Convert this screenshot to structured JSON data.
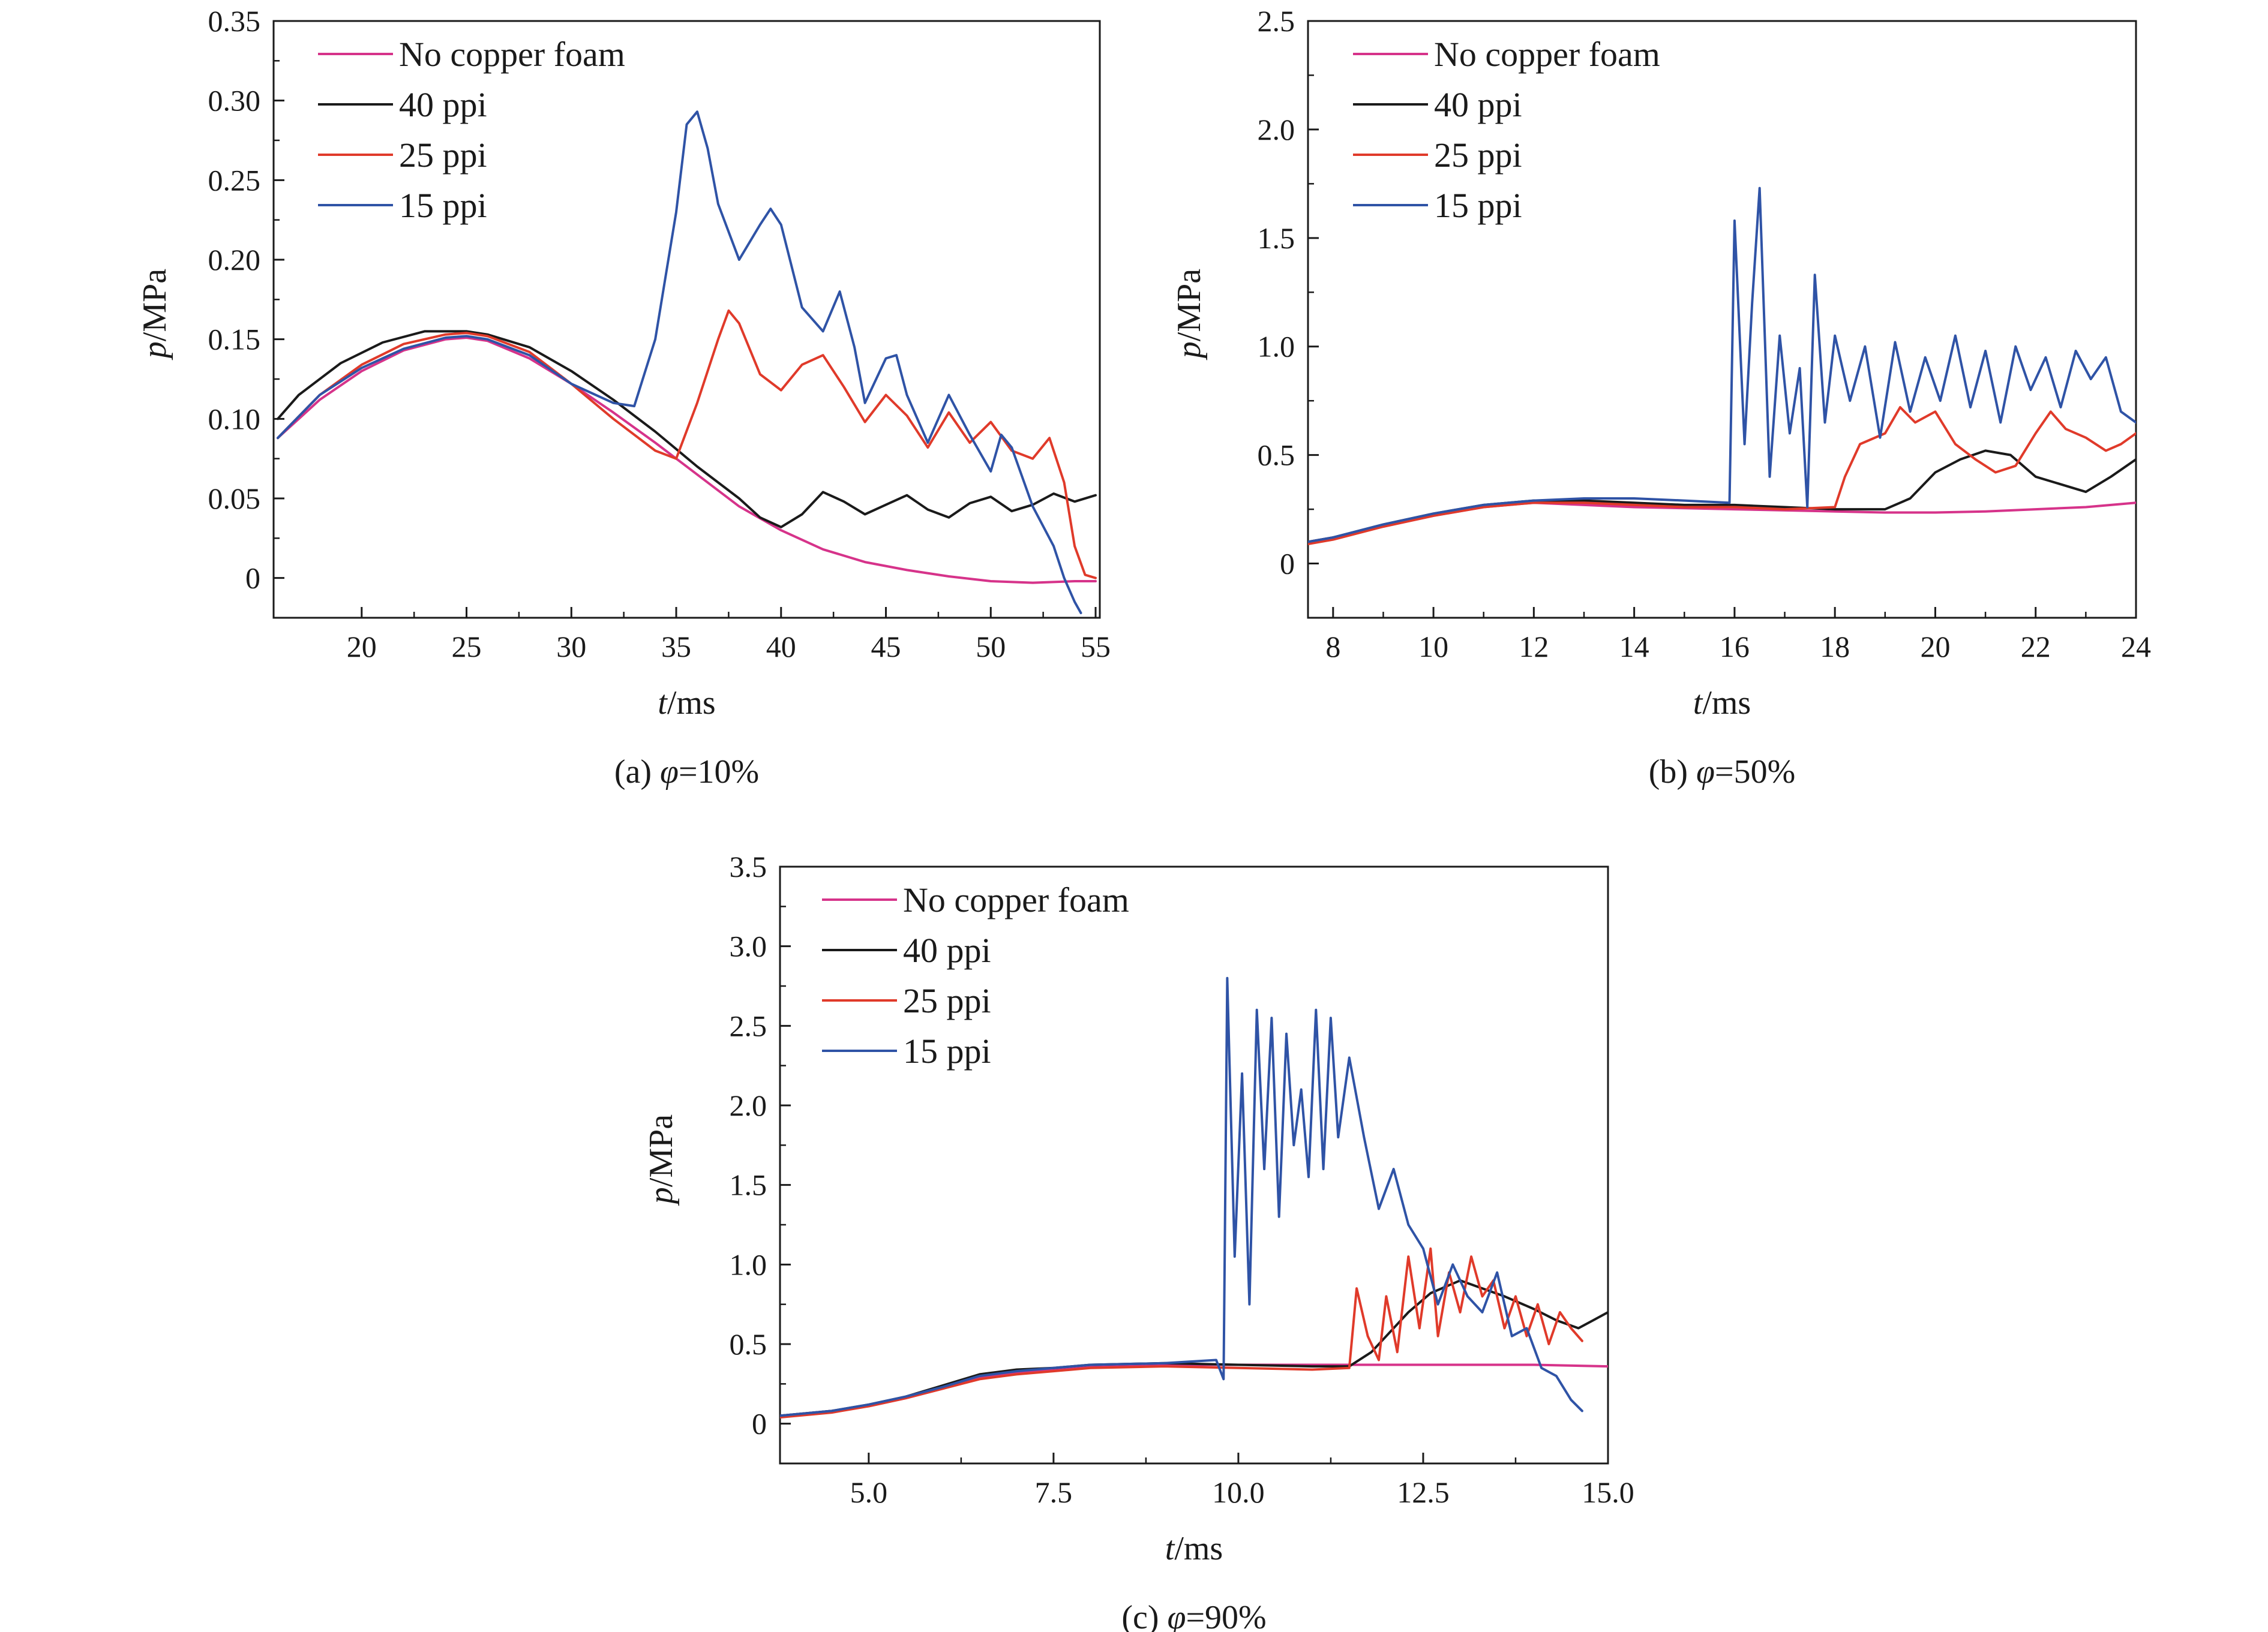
{
  "legend_labels": [
    "No copper foam",
    "40 ppi",
    "25 ppi",
    "15 ppi"
  ],
  "series_colors": {
    "No copper foam": "#d6338a",
    "40 ppi": "#1a1a1a",
    "25 ppi": "#e03a2a",
    "15 ppi": "#2f53a6"
  },
  "chart_data": [
    {
      "type": "line",
      "caption": "(a) φ=10%",
      "caption_prefix": "(a) ",
      "caption_symbol": "φ",
      "caption_suffix": "=10%",
      "xlabel_sym": "t",
      "xlabel_unit": "/ms",
      "ylabel_sym": "p",
      "ylabel_unit": "/MPa",
      "xlim": [
        15.8,
        55.2
      ],
      "ylim": [
        -0.025,
        0.35
      ],
      "xticks": [
        20,
        25,
        30,
        35,
        40,
        45,
        50,
        55
      ],
      "xtick_labels": [
        "20",
        "25",
        "30",
        "35",
        "40",
        "45",
        "50",
        "55"
      ],
      "yticks": [
        0,
        0.05,
        0.1,
        0.15,
        0.2,
        0.25,
        0.3,
        0.35
      ],
      "ytick_labels": [
        "0",
        "0.05",
        "0.10",
        "0.15",
        "0.20",
        "0.25",
        "0.30",
        "0.35"
      ],
      "series": [
        {
          "name": "No copper foam",
          "x": [
            16,
            18,
            20,
            22,
            24,
            25,
            26,
            28,
            30,
            32,
            34,
            36,
            38,
            40,
            42,
            44,
            46,
            48,
            50,
            52,
            54,
            55
          ],
          "y": [
            0.088,
            0.112,
            0.13,
            0.143,
            0.15,
            0.151,
            0.149,
            0.138,
            0.122,
            0.104,
            0.085,
            0.065,
            0.045,
            0.03,
            0.018,
            0.01,
            0.005,
            0.001,
            -0.002,
            -0.003,
            -0.002,
            -0.002
          ]
        },
        {
          "name": "40 ppi",
          "x": [
            16,
            17,
            19,
            21,
            23,
            25,
            26,
            28,
            30,
            32,
            34,
            36,
            38,
            39,
            40,
            41,
            42,
            43,
            44,
            45,
            46,
            47,
            48,
            49,
            50,
            51,
            52,
            53,
            54,
            55
          ],
          "y": [
            0.1,
            0.115,
            0.135,
            0.148,
            0.155,
            0.155,
            0.153,
            0.145,
            0.13,
            0.112,
            0.092,
            0.07,
            0.05,
            0.038,
            0.032,
            0.04,
            0.054,
            0.048,
            0.04,
            0.046,
            0.052,
            0.043,
            0.038,
            0.047,
            0.051,
            0.042,
            0.046,
            0.053,
            0.048,
            0.052
          ]
        },
        {
          "name": "25 ppi",
          "x": [
            16,
            18,
            20,
            22,
            24,
            25,
            26,
            28,
            30,
            32,
            34,
            35,
            36,
            37,
            37.5,
            38,
            39,
            40,
            41,
            42,
            43,
            44,
            45,
            46,
            47,
            48,
            49,
            50,
            51,
            52,
            52.8,
            53.5,
            54,
            54.5,
            55
          ],
          "y": [
            0.088,
            0.115,
            0.134,
            0.147,
            0.153,
            0.154,
            0.152,
            0.142,
            0.122,
            0.1,
            0.08,
            0.075,
            0.11,
            0.15,
            0.168,
            0.16,
            0.128,
            0.118,
            0.134,
            0.14,
            0.12,
            0.098,
            0.115,
            0.102,
            0.082,
            0.104,
            0.085,
            0.098,
            0.08,
            0.075,
            0.088,
            0.06,
            0.02,
            0.002,
            0.0
          ]
        },
        {
          "name": "15 ppi",
          "x": [
            16,
            18,
            20,
            22,
            24,
            25,
            26,
            28,
            30,
            32,
            33,
            34,
            35,
            35.5,
            36,
            36.5,
            37,
            38,
            39,
            39.5,
            40,
            41,
            42,
            42.8,
            43.5,
            44,
            45,
            45.5,
            46,
            47,
            48,
            49,
            50,
            50.5,
            51,
            52,
            53,
            53.5,
            54,
            54.3
          ],
          "y": [
            0.088,
            0.115,
            0.132,
            0.144,
            0.151,
            0.152,
            0.15,
            0.14,
            0.122,
            0.11,
            0.108,
            0.15,
            0.23,
            0.285,
            0.293,
            0.27,
            0.235,
            0.2,
            0.222,
            0.232,
            0.222,
            0.17,
            0.155,
            0.18,
            0.145,
            0.11,
            0.138,
            0.14,
            0.115,
            0.085,
            0.115,
            0.09,
            0.067,
            0.09,
            0.082,
            0.045,
            0.02,
            0.0,
            -0.015,
            -0.022
          ]
        }
      ]
    },
    {
      "type": "line",
      "caption": "(b) φ=50%",
      "caption_prefix": "(b) ",
      "caption_symbol": "φ",
      "caption_suffix": "=50%",
      "xlabel_sym": "t",
      "xlabel_unit": "/ms",
      "ylabel_sym": "p",
      "ylabel_unit": "/MPa",
      "xlim": [
        7.5,
        24
      ],
      "ylim": [
        -0.25,
        2.5
      ],
      "xticks": [
        8,
        10,
        12,
        14,
        16,
        18,
        20,
        22,
        24
      ],
      "xtick_labels": [
        "8",
        "10",
        "12",
        "14",
        "16",
        "18",
        "20",
        "22",
        "24"
      ],
      "yticks": [
        0,
        0.5,
        1.0,
        1.5,
        2.0,
        2.5
      ],
      "ytick_labels": [
        "0",
        "0.5",
        "1.0",
        "1.5",
        "2.0",
        "2.5"
      ],
      "series": [
        {
          "name": "No copper foam",
          "x": [
            7.5,
            8,
            9,
            10,
            11,
            12,
            13,
            14,
            15,
            16,
            17,
            18,
            19,
            20,
            21,
            22,
            23,
            24
          ],
          "y": [
            0.1,
            0.12,
            0.17,
            0.22,
            0.26,
            0.28,
            0.27,
            0.26,
            0.255,
            0.25,
            0.245,
            0.24,
            0.235,
            0.235,
            0.24,
            0.25,
            0.26,
            0.28
          ]
        },
        {
          "name": "40 ppi",
          "x": [
            7.5,
            8,
            9,
            10,
            11,
            12,
            13,
            14,
            15,
            16,
            17,
            18,
            19,
            19.5,
            20,
            20.5,
            21,
            21.5,
            22,
            23,
            23.5,
            24
          ],
          "y": [
            0.1,
            0.12,
            0.18,
            0.23,
            0.27,
            0.29,
            0.29,
            0.28,
            0.27,
            0.27,
            0.26,
            0.25,
            0.25,
            0.3,
            0.42,
            0.48,
            0.52,
            0.5,
            0.4,
            0.33,
            0.4,
            0.48
          ]
        },
        {
          "name": "25 ppi",
          "x": [
            7.5,
            8,
            9,
            10,
            11,
            12,
            13,
            14,
            15,
            16,
            17,
            18,
            18.2,
            18.5,
            19,
            19.3,
            19.6,
            20,
            20.4,
            20.8,
            21.2,
            21.6,
            22,
            22.3,
            22.6,
            23,
            23.4,
            23.7,
            24
          ],
          "y": [
            0.09,
            0.11,
            0.17,
            0.22,
            0.26,
            0.28,
            0.28,
            0.27,
            0.26,
            0.26,
            0.25,
            0.26,
            0.4,
            0.55,
            0.6,
            0.72,
            0.65,
            0.7,
            0.55,
            0.48,
            0.42,
            0.45,
            0.6,
            0.7,
            0.62,
            0.58,
            0.52,
            0.55,
            0.6
          ]
        },
        {
          "name": "15 ppi",
          "x": [
            7.5,
            8,
            9,
            10,
            11,
            12,
            13,
            14,
            15,
            15.9,
            16.0,
            16.2,
            16.35,
            16.5,
            16.7,
            16.9,
            17.1,
            17.3,
            17.45,
            17.6,
            17.8,
            18.0,
            18.3,
            18.6,
            18.9,
            19.2,
            19.5,
            19.8,
            20.1,
            20.4,
            20.7,
            21.0,
            21.3,
            21.6,
            21.9,
            22.2,
            22.5,
            22.8,
            23.1,
            23.4,
            23.7,
            24.0
          ],
          "y": [
            0.1,
            0.12,
            0.18,
            0.23,
            0.27,
            0.29,
            0.3,
            0.3,
            0.29,
            0.28,
            1.58,
            0.55,
            1.2,
            1.73,
            0.4,
            1.05,
            0.6,
            0.9,
            0.26,
            1.33,
            0.65,
            1.05,
            0.75,
            1.0,
            0.58,
            1.02,
            0.7,
            0.95,
            0.75,
            1.05,
            0.72,
            0.98,
            0.65,
            1.0,
            0.8,
            0.95,
            0.72,
            0.98,
            0.85,
            0.95,
            0.7,
            0.65
          ]
        }
      ]
    },
    {
      "type": "line",
      "caption": "(c) φ=90%",
      "caption_prefix": "(c) ",
      "caption_symbol": "φ",
      "caption_suffix": "=90%",
      "xlabel_sym": "t",
      "xlabel_unit": "/ms",
      "ylabel_sym": "p",
      "ylabel_unit": "/MPa",
      "xlim": [
        3.8,
        15.0
      ],
      "ylim": [
        -0.25,
        3.5
      ],
      "xticks": [
        5.0,
        7.5,
        10.0,
        12.5,
        15.0
      ],
      "xtick_labels": [
        "5.0",
        "7.5",
        "10.0",
        "12.5",
        "15.0"
      ],
      "yticks": [
        0,
        0.5,
        1.0,
        1.5,
        2.0,
        2.5,
        3.0,
        3.5
      ],
      "ytick_labels": [
        "0",
        "0.5",
        "1.0",
        "1.5",
        "2.0",
        "2.5",
        "3.0",
        "3.5"
      ],
      "series": [
        {
          "name": "No copper foam",
          "x": [
            3.8,
            4.5,
            5.0,
            5.5,
            6.0,
            6.5,
            7.0,
            7.5,
            8.0,
            9.0,
            10.0,
            11.0,
            12.0,
            13.0,
            14.0,
            15.0
          ],
          "y": [
            0.05,
            0.08,
            0.11,
            0.16,
            0.22,
            0.29,
            0.32,
            0.34,
            0.36,
            0.37,
            0.37,
            0.37,
            0.37,
            0.37,
            0.37,
            0.36
          ]
        },
        {
          "name": "40 ppi",
          "x": [
            3.8,
            4.5,
            5.0,
            5.5,
            6.0,
            6.5,
            7.0,
            7.5,
            8.0,
            9.0,
            10.0,
            11.0,
            11.5,
            11.8,
            12.0,
            12.3,
            12.6,
            13.0,
            13.3,
            13.6,
            14.0,
            14.3,
            14.6,
            14.8,
            15.0
          ],
          "y": [
            0.05,
            0.08,
            0.12,
            0.17,
            0.24,
            0.31,
            0.34,
            0.35,
            0.37,
            0.38,
            0.37,
            0.36,
            0.36,
            0.45,
            0.55,
            0.7,
            0.82,
            0.9,
            0.85,
            0.8,
            0.72,
            0.65,
            0.6,
            0.65,
            0.7
          ]
        },
        {
          "name": "25 ppi",
          "x": [
            3.8,
            4.5,
            5.0,
            5.5,
            6.0,
            6.5,
            7.0,
            7.5,
            8.0,
            9.0,
            10.0,
            11.0,
            11.5,
            11.6,
            11.75,
            11.9,
            12.0,
            12.15,
            12.3,
            12.45,
            12.6,
            12.7,
            12.85,
            13.0,
            13.15,
            13.3,
            13.45,
            13.6,
            13.75,
            13.9,
            14.05,
            14.2,
            14.35,
            14.5,
            14.65
          ],
          "y": [
            0.04,
            0.07,
            0.11,
            0.16,
            0.22,
            0.28,
            0.31,
            0.33,
            0.35,
            0.36,
            0.35,
            0.34,
            0.35,
            0.85,
            0.55,
            0.4,
            0.8,
            0.45,
            1.05,
            0.6,
            1.1,
            0.55,
            0.95,
            0.7,
            1.05,
            0.8,
            0.9,
            0.6,
            0.8,
            0.55,
            0.75,
            0.5,
            0.7,
            0.6,
            0.52
          ]
        },
        {
          "name": "15 ppi",
          "x": [
            3.8,
            4.5,
            5.0,
            5.5,
            6.0,
            6.5,
            7.0,
            7.5,
            8.0,
            9.0,
            9.7,
            9.8,
            9.85,
            9.95,
            10.05,
            10.15,
            10.25,
            10.35,
            10.45,
            10.55,
            10.65,
            10.75,
            10.85,
            10.95,
            11.05,
            11.15,
            11.25,
            11.35,
            11.5,
            11.7,
            11.9,
            12.1,
            12.3,
            12.5,
            12.7,
            12.9,
            13.1,
            13.3,
            13.5,
            13.7,
            13.9,
            14.1,
            14.3,
            14.5,
            14.65
          ],
          "y": [
            0.05,
            0.08,
            0.12,
            0.17,
            0.23,
            0.3,
            0.33,
            0.35,
            0.37,
            0.38,
            0.4,
            0.28,
            2.8,
            1.05,
            2.2,
            0.75,
            2.6,
            1.6,
            2.55,
            1.3,
            2.45,
            1.75,
            2.1,
            1.55,
            2.6,
            1.6,
            2.55,
            1.8,
            2.3,
            1.8,
            1.35,
            1.6,
            1.25,
            1.1,
            0.75,
            1.0,
            0.8,
            0.7,
            0.95,
            0.55,
            0.6,
            0.35,
            0.3,
            0.15,
            0.08
          ]
        }
      ]
    }
  ]
}
